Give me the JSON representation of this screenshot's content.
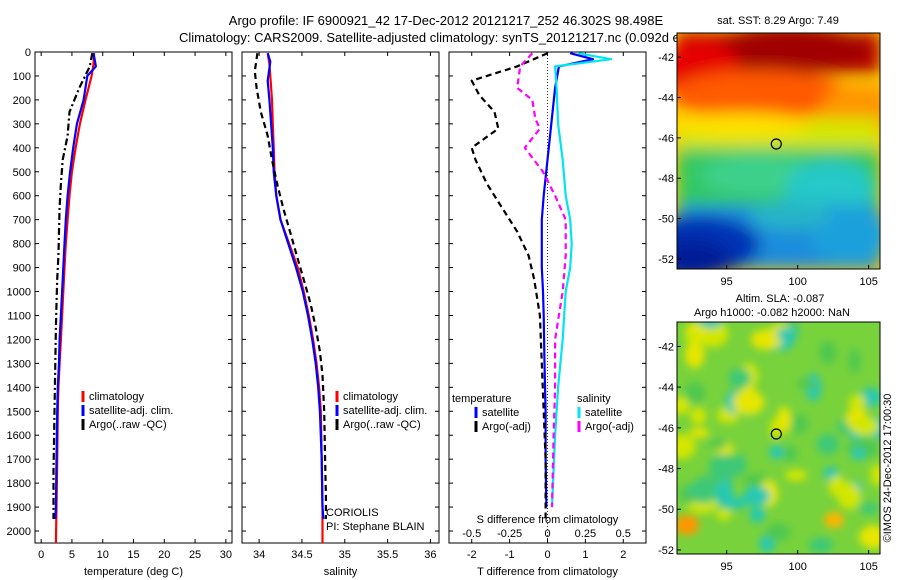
{
  "title": {
    "line1": "Argo profile: IF 6900921_42 17-Dec-2012 20121217_252 46.302S 98.498E",
    "line2": "Climatology: CARS2009. Satellite-adjusted climatology: synTS_20121217.nc (0.092d earlier)"
  },
  "colors": {
    "climatology": "#ff0000",
    "satellite": "#0000ff",
    "argo": "#000000",
    "sal_satellite": "#00e5ee",
    "sal_argo": "#ff00ff"
  },
  "chart_data": [
    {
      "id": "temperature",
      "type": "line",
      "xlabel": "temperature (deg C)",
      "ylabel": "",
      "xlim": [
        -1,
        31
      ],
      "ylim": [
        2050,
        0
      ],
      "xticks": [
        0,
        5,
        10,
        15,
        20,
        25,
        30
      ],
      "yticks": [
        0,
        100,
        200,
        300,
        400,
        500,
        600,
        700,
        800,
        900,
        1000,
        1100,
        1200,
        1300,
        1400,
        1500,
        1600,
        1700,
        1800,
        1900,
        2000
      ],
      "legend": [
        "climatology",
        "satellite-adj. clim.",
        "Argo(..raw -QC)"
      ],
      "legend_position": "lower-center",
      "series": [
        {
          "name": "climatology",
          "style": "solid",
          "color": "#ff0000",
          "x": [
            8.6,
            8.5,
            8.2,
            7.2,
            6.3,
            5.6,
            5.0,
            4.6,
            4.3,
            4.0,
            3.8,
            3.6,
            3.4,
            3.2,
            3.0,
            2.8,
            2.7,
            2.6,
            2.5,
            2.4
          ],
          "y": [
            5,
            50,
            100,
            200,
            300,
            400,
            500,
            600,
            700,
            800,
            900,
            1000,
            1100,
            1200,
            1300,
            1400,
            1500,
            1700,
            1900,
            2050
          ]
        },
        {
          "name": "satellite-adj. clim.",
          "style": "solid",
          "color": "#0000ff",
          "x": [
            8.5,
            8.9,
            7.5,
            6.9,
            5.8,
            5.2,
            4.7,
            4.3,
            4.0,
            3.8,
            3.6,
            3.4,
            3.2,
            3.0,
            2.9,
            2.7,
            2.6,
            2.5,
            2.4,
            2.3
          ],
          "y": [
            5,
            60,
            100,
            200,
            300,
            400,
            500,
            600,
            700,
            800,
            900,
            1000,
            1100,
            1200,
            1300,
            1400,
            1500,
            1700,
            1900,
            1950
          ]
        },
        {
          "name": "Argo(..raw -QC)",
          "style": "dashdot",
          "color": "#000000",
          "x": [
            8.3,
            7.9,
            6.2,
            4.6,
            4.3,
            3.5,
            3.2,
            3.0,
            2.9,
            2.8,
            2.6,
            2.5,
            2.4,
            2.3,
            2.2,
            2.1,
            2.0,
            2.0,
            2.0
          ],
          "y": [
            5,
            60,
            150,
            250,
            350,
            450,
            550,
            650,
            750,
            850,
            950,
            1050,
            1150,
            1300,
            1450,
            1600,
            1750,
            1900,
            1950
          ]
        }
      ]
    },
    {
      "id": "salinity",
      "type": "line",
      "xlabel": "salinity",
      "ylabel": "",
      "xlim": [
        33.8,
        36.1
      ],
      "ylim": [
        2050,
        0
      ],
      "xticks": [
        34,
        34.5,
        35,
        35.5,
        36
      ],
      "legend": [
        "climatology",
        "satellite-adj. clim.",
        "Argo(..raw -QC)"
      ],
      "legend_position": "lower-right",
      "annotation": [
        "CORIOLIS",
        "PI: Stephane BLAIN"
      ],
      "series": [
        {
          "name": "climatology",
          "style": "solid",
          "color": "#ff0000",
          "x": [
            34.1,
            34.12,
            34.13,
            34.15,
            34.16,
            34.17,
            34.18,
            34.2,
            34.25,
            34.35,
            34.45,
            34.52,
            34.58,
            34.63,
            34.67,
            34.7,
            34.72,
            34.73,
            34.74,
            34.74
          ],
          "y": [
            5,
            50,
            100,
            200,
            300,
            400,
            500,
            600,
            700,
            800,
            900,
            1000,
            1100,
            1200,
            1300,
            1400,
            1500,
            1700,
            1900,
            2050
          ]
        },
        {
          "name": "satellite-adj. clim.",
          "style": "solid",
          "color": "#0000ff",
          "x": [
            34.1,
            34.13,
            34.1,
            34.12,
            34.14,
            34.16,
            34.17,
            34.2,
            34.25,
            34.34,
            34.43,
            34.51,
            34.57,
            34.62,
            34.66,
            34.69,
            34.71,
            34.73,
            34.74,
            34.75
          ],
          "y": [
            5,
            40,
            120,
            200,
            300,
            400,
            500,
            600,
            700,
            800,
            900,
            1000,
            1100,
            1200,
            1300,
            1400,
            1500,
            1700,
            1900,
            1950
          ]
        },
        {
          "name": "Argo(..raw -QC)",
          "style": "dashed",
          "color": "#000000",
          "x": [
            33.98,
            33.95,
            33.97,
            34.02,
            34.06,
            34.1,
            34.15,
            34.21,
            34.28,
            34.36,
            34.44,
            34.52,
            34.6,
            34.66,
            34.71,
            34.74,
            34.76,
            34.77,
            34.78,
            34.78
          ],
          "y": [
            5,
            80,
            150,
            250,
            300,
            350,
            450,
            550,
            650,
            750,
            850,
            950,
            1050,
            1150,
            1250,
            1350,
            1500,
            1700,
            1850,
            1950
          ]
        }
      ]
    },
    {
      "id": "difference",
      "type": "line",
      "xlabel": "T difference from climatology",
      "x2label": "S difference from climatology",
      "xlim": [
        -2.6,
        2.6
      ],
      "ylim": [
        2050,
        0
      ],
      "xticks": [
        -2,
        -1,
        0,
        1,
        2
      ],
      "x2ticks": [
        -0.5,
        -0.25,
        0,
        0.25,
        0.5
      ],
      "legend_titles": [
        "temperature",
        "salinity"
      ],
      "legend": [
        "satellite",
        "Argo(-adj)",
        "satellite",
        "Argo(-adj)"
      ],
      "legend_position": "lower-center",
      "series": [
        {
          "name": "satellite",
          "group": "temperature",
          "style": "solid",
          "color": "#0000ff",
          "x": [
            0.6,
            1.2,
            0.3,
            0.2,
            0.1,
            0.0,
            -0.1,
            -0.15,
            -0.15,
            -0.15,
            -0.12,
            -0.1,
            -0.08,
            -0.05,
            -0.05,
            -0.03
          ],
          "y": [
            5,
            30,
            60,
            150,
            300,
            450,
            600,
            700,
            800,
            900,
            1000,
            1100,
            1300,
            1500,
            1700,
            1900
          ]
        },
        {
          "name": "Argo(-adj)",
          "group": "temperature",
          "style": "dashed",
          "color": "#000000",
          "x": [
            0.0,
            -0.8,
            -2.0,
            -1.8,
            -1.4,
            -1.3,
            -2.0,
            -1.9,
            -1.6,
            -1.2,
            -0.8,
            -0.5,
            -0.35,
            -0.2,
            -0.15,
            -0.1,
            -0.05,
            -0.05
          ],
          "y": [
            5,
            60,
            120,
            180,
            250,
            320,
            400,
            450,
            550,
            650,
            750,
            850,
            950,
            1100,
            1300,
            1500,
            1700,
            1950
          ]
        },
        {
          "name": "satellite",
          "group": "salinity",
          "style": "solid",
          "color": "#00e5ee",
          "x": [
            0.2,
            0.42,
            0.05,
            0.06,
            0.07,
            0.1,
            0.12,
            0.15,
            0.16,
            0.15,
            0.12,
            0.1,
            0.07,
            0.05,
            0.03
          ],
          "y": [
            5,
            30,
            60,
            150,
            300,
            450,
            600,
            700,
            800,
            900,
            1000,
            1200,
            1400,
            1600,
            1900
          ]
        },
        {
          "name": "Argo(-adj)",
          "group": "salinity",
          "style": "dashed",
          "color": "#ff00ff",
          "x": [
            -0.1,
            -0.18,
            -0.2,
            -0.1,
            -0.08,
            -0.05,
            -0.15,
            -0.03,
            0.05,
            0.12,
            0.12,
            0.1,
            0.05,
            0.05,
            0.04,
            0.03
          ],
          "y": [
            5,
            60,
            150,
            200,
            280,
            320,
            400,
            500,
            600,
            700,
            850,
            1000,
            1200,
            1400,
            1600,
            1900
          ]
        }
      ]
    },
    {
      "id": "sst-map",
      "type": "heatmap",
      "title": "sat. SST: 8.29 Argo: 7.49",
      "xticks": [
        95,
        100,
        105
      ],
      "yticks": [
        -42,
        -44,
        -46,
        -48,
        -50,
        -52
      ],
      "xlim": [
        91.5,
        105.8
      ],
      "ylim": [
        -52.5,
        -40.8
      ],
      "marker": {
        "lon": 98.498,
        "lat": -46.302
      }
    },
    {
      "id": "sla-map",
      "type": "heatmap",
      "title": "Altim. SLA: -0.087",
      "subtitle": "Argo h1000: -0.082 h2000: NaN",
      "xticks": [
        95,
        100,
        105
      ],
      "yticks": [
        -42,
        -44,
        -46,
        -48,
        -50,
        -52
      ],
      "xlim": [
        91.5,
        105.8
      ],
      "ylim": [
        -52.2,
        -40.8
      ],
      "marker": {
        "lon": 98.498,
        "lat": -46.302
      }
    }
  ],
  "footer": {
    "credit": "©IMOS 24-Dec-2012 17:00:30"
  }
}
